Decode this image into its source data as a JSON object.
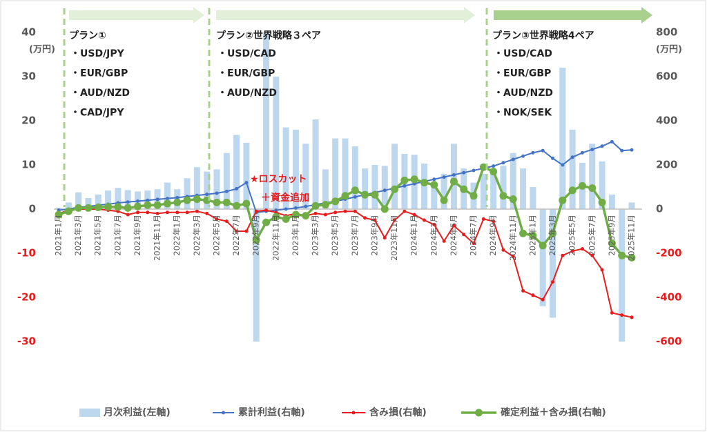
{
  "chart_data": {
    "type": "combo",
    "categories": [
      "2021年1月",
      null,
      "2021年3月",
      null,
      "2021年5月",
      null,
      "2021年7月",
      null,
      "2021年9月",
      null,
      "2021年11月",
      null,
      "2022年1月",
      null,
      "2022年3月",
      null,
      "2022年5月",
      null,
      "2022年7月",
      null,
      "2022年9月",
      null,
      "2022年11月",
      null,
      "2023年1月",
      null,
      "2023年3月",
      null,
      "2023年5月",
      null,
      "2023年7月",
      null,
      "2023年9月",
      null,
      "2023年11月",
      null,
      "2024年1月",
      null,
      "2024年3月",
      null,
      "2024年5月",
      null,
      "2024年7月",
      null,
      "2024年9月",
      null,
      "2024年11月",
      null,
      "2025年1月",
      null,
      "2025年3月",
      null,
      "2025年5月",
      null,
      "2025年7月",
      null,
      "2025年9月",
      null,
      "2025年11月"
    ],
    "ylim": [
      -30,
      40
    ],
    "yticks": [
      -30,
      -20,
      -10,
      0,
      10,
      20,
      30,
      40
    ],
    "y2lim": [
      -600,
      800
    ],
    "y2ticks": [
      -600,
      -400,
      -200,
      0,
      200,
      400,
      600,
      800
    ],
    "y_unit_label": "(万円)",
    "y2_unit_label": "(万円)",
    "negative_tick_color": "#e81c1c",
    "series": [
      {
        "name": "月次利益(左軸)",
        "type": "bar",
        "color": "#bdd7ee",
        "values": [
          0.3,
          1.5,
          3.8,
          2.5,
          3.3,
          4.2,
          4.8,
          4.3,
          4.0,
          4.2,
          4.5,
          6.0,
          4.5,
          7.0,
          9.5,
          8.5,
          9.0,
          12.7,
          16.8,
          15.0,
          -30,
          40,
          30,
          18.5,
          18.0,
          14.8,
          20.3,
          9.0,
          16.0,
          16.0,
          14.2,
          9.2,
          10.0,
          9.8,
          14.8,
          12.5,
          12.3,
          10.3,
          5.0,
          8.0,
          14.8,
          9.2,
          6.0,
          8.0,
          9.0,
          9.8,
          12.7,
          9.2,
          5.0,
          -22.0,
          -24.6,
          32.0,
          18.0,
          10.5,
          14.8,
          10.8,
          3.3,
          -30,
          1.5
        ]
      },
      {
        "name": "累計利益(右軸)",
        "type": "line",
        "axis": "y2",
        "color": "#4472c4",
        "values": [
          -5,
          0,
          8,
          12,
          18,
          22,
          28,
          32,
          36,
          40,
          44,
          48,
          52,
          57,
          62,
          67,
          72,
          80,
          92,
          120,
          -15,
          -10,
          -5,
          0,
          5,
          12,
          20,
          28,
          35,
          45,
          55,
          65,
          75,
          85,
          95,
          105,
          115,
          125,
          135,
          145,
          155,
          165,
          175,
          185,
          195,
          210,
          225,
          240,
          255,
          265,
          230,
          200,
          235,
          255,
          270,
          285,
          305,
          265,
          268
        ]
      },
      {
        "name": "含み損(右軸)",
        "type": "line",
        "axis": "y2",
        "color": "#e81c1c",
        "values": [
          -20,
          -5,
          0,
          0,
          0,
          -5,
          -10,
          -25,
          -15,
          -15,
          -20,
          -15,
          -15,
          -15,
          -10,
          -20,
          -45,
          -55,
          -100,
          -100,
          -10,
          -5,
          -15,
          -30,
          -20,
          -30,
          -20,
          -25,
          -15,
          -10,
          -10,
          -40,
          -50,
          -130,
          -50,
          -10,
          -25,
          -50,
          -70,
          -145,
          -75,
          -115,
          -155,
          -45,
          -55,
          -185,
          -215,
          -370,
          -390,
          -410,
          -330,
          -210,
          -190,
          -180,
          -210,
          -275,
          -470,
          -480,
          -490
        ]
      },
      {
        "name": "確定利益＋含み損(右軸)",
        "type": "line",
        "axis": "y2",
        "color": "#70ad47",
        "values": [
          -25,
          -10,
          5,
          5,
          8,
          10,
          10,
          5,
          12,
          18,
          18,
          25,
          30,
          40,
          45,
          40,
          30,
          30,
          15,
          25,
          -140,
          -60,
          -35,
          -45,
          -25,
          -30,
          15,
          20,
          35,
          60,
          85,
          65,
          65,
          0,
          90,
          130,
          135,
          120,
          110,
          40,
          125,
          90,
          60,
          190,
          170,
          60,
          45,
          -110,
          -120,
          -165,
          -110,
          40,
          85,
          105,
          95,
          30,
          -155,
          -210,
          -220
        ]
      }
    ],
    "plans": [
      {
        "title": "プラン①",
        "pairs": [
          "・USD/JPY",
          "・EUR/GBP",
          "・AUD/NZD",
          "・CAD/JPY"
        ]
      },
      {
        "title": "プラン②世界戦略３ペア",
        "pairs": [
          "・USD/CAD",
          "・EUR/GBP",
          "・AUD/NZD"
        ]
      },
      {
        "title": "プラン③世界戦略4ペア",
        "pairs": [
          "・USD/CAD",
          "・EUR/GBP",
          "・AUD/NZD",
          "・NOK/SEK"
        ]
      }
    ],
    "annotations": [
      "★ロスカット",
      "＋資金追加"
    ]
  }
}
